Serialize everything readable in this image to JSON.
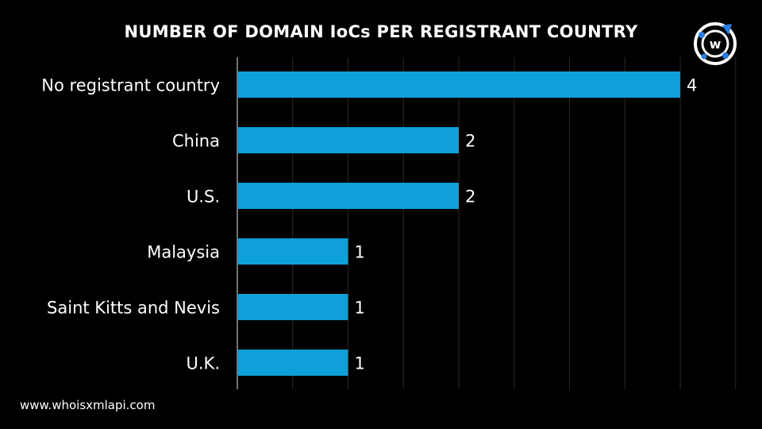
{
  "header": {
    "title": "NUMBER OF DOMAIN IoCs PER REGISTRANT COUNTRY"
  },
  "footer": {
    "website": "www.whoisxmlapi.com"
  },
  "logo": {
    "icon": "whoisxmlapi-logo-icon",
    "letter": "w",
    "colors": {
      "ring": "#ffffff",
      "accent": "#2a7de1"
    }
  },
  "chart_data": {
    "type": "bar",
    "orientation": "horizontal",
    "title": "NUMBER OF DOMAIN IoCs PER REGISTRANT COUNTRY",
    "categories": [
      "No registrant country",
      "China",
      "U.S.",
      "Malaysia",
      "Saint Kitts and Nevis",
      "U.K."
    ],
    "values": [
      4,
      2,
      2,
      1,
      1,
      1
    ],
    "data_labels": [
      "4",
      "2",
      "2",
      "1",
      "1",
      "1"
    ],
    "xlabel": "",
    "ylabel": "",
    "xlim": [
      0,
      4.5
    ],
    "grid": true,
    "legend": "none",
    "colors": {
      "bar": "#0f9fda",
      "grid": "#2b2b2b",
      "axis": "#9a9a9a",
      "text": "#ffffff"
    }
  }
}
